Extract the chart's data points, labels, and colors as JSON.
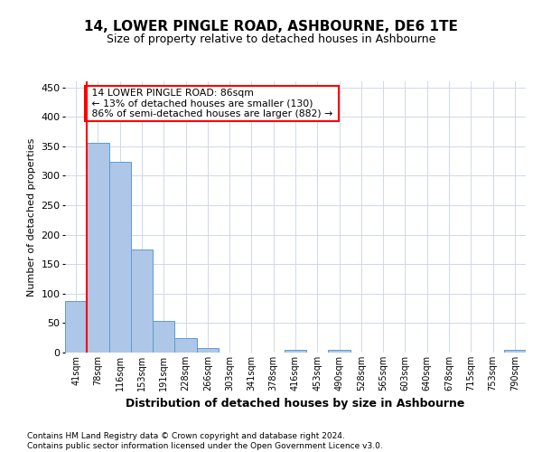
{
  "title": "14, LOWER PINGLE ROAD, ASHBOURNE, DE6 1TE",
  "subtitle": "Size of property relative to detached houses in Ashbourne",
  "xlabel": "Distribution of detached houses by size in Ashbourne",
  "ylabel": "Number of detached properties",
  "footer_line1": "Contains HM Land Registry data © Crown copyright and database right 2024.",
  "footer_line2": "Contains public sector information licensed under the Open Government Licence v3.0.",
  "annotation_line1": "14 LOWER PINGLE ROAD: 86sqm",
  "annotation_line2": "← 13% of detached houses are smaller (130)",
  "annotation_line3": "86% of semi-detached houses are larger (882) →",
  "bar_categories": [
    "41sqm",
    "78sqm",
    "116sqm",
    "153sqm",
    "191sqm",
    "228sqm",
    "266sqm",
    "303sqm",
    "341sqm",
    "378sqm",
    "416sqm",
    "453sqm",
    "490sqm",
    "528sqm",
    "565sqm",
    "603sqm",
    "640sqm",
    "678sqm",
    "715sqm",
    "753sqm",
    "790sqm"
  ],
  "bar_values": [
    88,
    355,
    323,
    175,
    53,
    25,
    8,
    0,
    0,
    0,
    5,
    0,
    5,
    0,
    0,
    0,
    0,
    0,
    0,
    0,
    5
  ],
  "bar_color": "#aec6e8",
  "bar_edge_color": "#5b9bd5",
  "red_line_x": 0.5,
  "ylim": [
    0,
    460
  ],
  "yticks": [
    0,
    50,
    100,
    150,
    200,
    250,
    300,
    350,
    400,
    450
  ],
  "background_color": "#ffffff",
  "grid_color": "#d0d8e8"
}
